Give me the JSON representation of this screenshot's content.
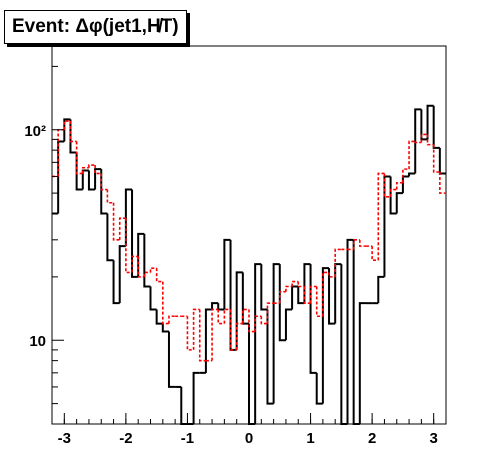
{
  "title": "Event: Δφ(jet1,H̸T)",
  "chart_data": {
    "type": "step",
    "title": "Event: Δφ(jet1,H̸T)",
    "xlim": [
      -3.2,
      3.2
    ],
    "ylim": [
      4,
      250
    ],
    "yscale": "log",
    "x_ticks": [
      "-3",
      "-2",
      "-1",
      "0",
      "1",
      "2",
      "3"
    ],
    "y_ticks": [
      "10",
      "10²"
    ],
    "bin_edges": [
      -3.2,
      -3.1,
      -3.0,
      -2.9,
      -2.8,
      -2.7,
      -2.6,
      -2.5,
      -2.4,
      -2.3,
      -2.2,
      -2.1,
      -2.0,
      -1.9,
      -1.8,
      -1.7,
      -1.6,
      -1.5,
      -1.4,
      -1.3,
      -1.2,
      -1.1,
      -1.0,
      -0.9,
      -0.8,
      -0.7,
      -0.6,
      -0.5,
      -0.4,
      -0.3,
      -0.2,
      -0.1,
      0.0,
      0.1,
      0.2,
      0.3,
      0.4,
      0.5,
      0.6,
      0.7,
      0.8,
      0.9,
      1.0,
      1.1,
      1.2,
      1.3,
      1.4,
      1.5,
      1.6,
      1.7,
      1.8,
      1.9,
      2.0,
      2.1,
      2.2,
      2.3,
      2.4,
      2.5,
      2.6,
      2.7,
      2.8,
      2.9,
      3.0,
      3.1,
      3.2
    ],
    "series": [
      {
        "color": "#000000",
        "style": "solid",
        "values": [
          40,
          88,
          112,
          78,
          52,
          64,
          52,
          65,
          40,
          24,
          15,
          28,
          52,
          20,
          32,
          18,
          14,
          12,
          11,
          6,
          6,
          4,
          3,
          7,
          7,
          14,
          15,
          14,
          30,
          9,
          21,
          12,
          3,
          23,
          14,
          5,
          23,
          10,
          14,
          18,
          15,
          23,
          7,
          5,
          22,
          12,
          23,
          3,
          30,
          3,
          15,
          15,
          15,
          20,
          60,
          40,
          50,
          60,
          62,
          125,
          90,
          130,
          82,
          62
        ]
      },
      {
        "color": "#ff0000",
        "style": "dashed",
        "values": [
          60,
          100,
          110,
          88,
          62,
          66,
          68,
          62,
          52,
          45,
          30,
          38,
          21,
          25,
          20,
          21,
          22,
          19,
          12,
          13,
          13,
          13,
          9,
          14,
          8,
          8,
          14,
          12,
          14,
          9,
          12,
          14,
          11,
          13,
          12,
          15,
          15,
          17,
          18,
          19,
          18,
          15,
          18,
          13,
          21,
          20,
          27,
          27,
          27,
          30,
          28,
          28,
          24,
          62,
          48,
          52,
          56,
          65,
          88,
          87,
          95,
          85,
          63,
          50
        ]
      }
    ]
  }
}
